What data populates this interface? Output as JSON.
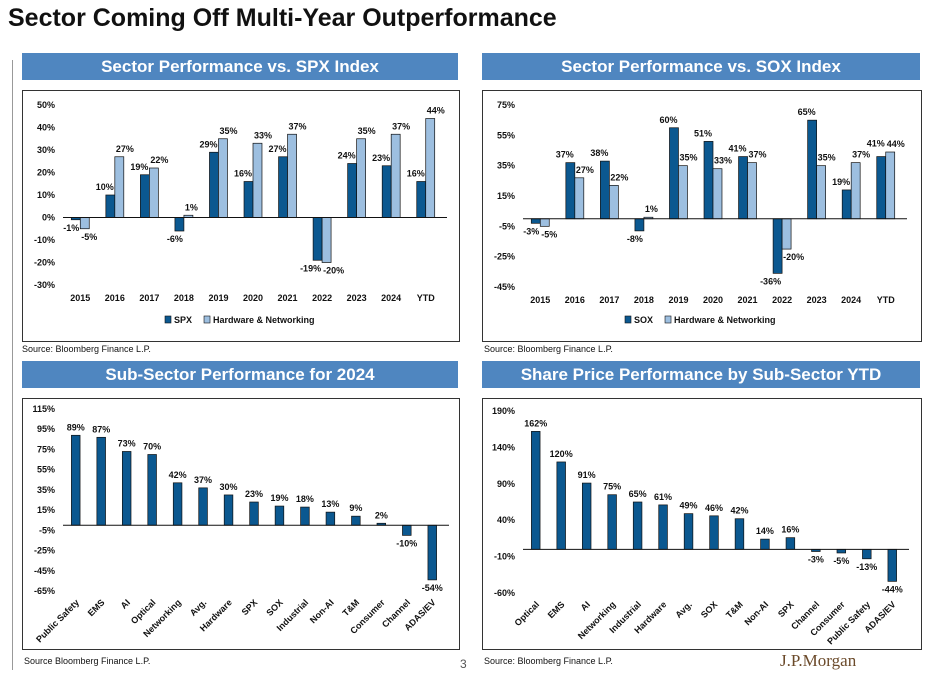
{
  "title": "Sector Coming Off Multi-Year Outperformance",
  "page_number": "3",
  "logo": "J.P.Morgan",
  "colors": {
    "header": "#4f86c0",
    "dark_bar": "#0b5890",
    "light_bar": "#9dbfe0"
  },
  "panels": [
    {
      "header": "Sector Performance vs. SPX Index",
      "source": "Source: Bloomberg Finance L.P."
    },
    {
      "header": "Sector Performance vs. SOX Index",
      "source": "Source: Bloomberg Finance L.P."
    },
    {
      "header": "Sub-Sector Performance for 2024",
      "source": "Source Bloomberg Finance L.P."
    },
    {
      "header": "Share Price Performance by Sub-Sector YTD",
      "source": "Source: Bloomberg Finance L.P."
    }
  ],
  "chart_data": [
    {
      "type": "bar",
      "categories": [
        "2015",
        "2016",
        "2017",
        "2018",
        "2019",
        "2020",
        "2021",
        "2022",
        "2023",
        "2024",
        "YTD"
      ],
      "series": [
        {
          "name": "SPX",
          "values": [
            -1,
            10,
            19,
            -6,
            29,
            16,
            27,
            -19,
            24,
            23,
            16
          ]
        },
        {
          "name": "Hardware & Networking",
          "values": [
            -5,
            27,
            22,
            1,
            35,
            33,
            37,
            -20,
            35,
            37,
            44
          ]
        }
      ],
      "ylim": [
        -30,
        50
      ],
      "yticks": [
        -30,
        -20,
        -10,
        0,
        10,
        20,
        30,
        40,
        50
      ],
      "tick_labels": [
        "-30%",
        "-20%",
        "-10%",
        "0%",
        "10%",
        "20%",
        "30%",
        "40%",
        "50%"
      ],
      "unit": "%",
      "legend": "bottom",
      "grid": false
    },
    {
      "type": "bar",
      "categories": [
        "2015",
        "2016",
        "2017",
        "2018",
        "2019",
        "2020",
        "2021",
        "2022",
        "2023",
        "2024",
        "YTD"
      ],
      "series": [
        {
          "name": "SOX",
          "values": [
            -3,
            37,
            38,
            -8,
            60,
            51,
            41,
            -36,
            65,
            19,
            41
          ]
        },
        {
          "name": "Hardware & Networking",
          "values": [
            -5,
            27,
            22,
            1,
            35,
            33,
            37,
            -20,
            35,
            37,
            44
          ]
        }
      ],
      "ylim": [
        -45,
        75
      ],
      "yticks": [
        -45,
        -25,
        -5,
        15,
        35,
        55,
        75
      ],
      "tick_labels": [
        "-45%",
        "-25%",
        "-5%",
        "15%",
        "35%",
        "55%",
        "75%"
      ],
      "unit": "%",
      "legend": "bottom",
      "grid": false
    },
    {
      "type": "bar",
      "categories": [
        "Public Safety",
        "EMS",
        "AI",
        "Optical",
        "Networking",
        "Avg.",
        "Hardware",
        "SPX",
        "SOX",
        "Industrial",
        "Non-AI",
        "T&M",
        "Consumer",
        "Channel",
        "ADAS/EV"
      ],
      "series": [
        {
          "values": [
            89,
            87,
            73,
            70,
            42,
            37,
            30,
            23,
            19,
            18,
            13,
            9,
            2,
            -10,
            -54
          ]
        }
      ],
      "ylim": [
        -65,
        115
      ],
      "yticks": [
        -65,
        -45,
        -25,
        -5,
        15,
        35,
        55,
        75,
        95,
        115
      ],
      "tick_labels": [
        "-65%",
        "-45%",
        "-25%",
        "-5%",
        "15%",
        "35%",
        "55%",
        "75%",
        "95%",
        "115%"
      ],
      "unit": "%",
      "grid": false
    },
    {
      "type": "bar",
      "categories": [
        "Optical",
        "EMS",
        "AI",
        "Networking",
        "Industrial",
        "Hardware",
        "Avg.",
        "SOX",
        "T&M",
        "Non-AI",
        "SPX",
        "Channel",
        "Consumer",
        "Public Safety",
        "ADAS/EV"
      ],
      "series": [
        {
          "values": [
            162,
            120,
            91,
            75,
            65,
            61,
            49,
            46,
            42,
            14,
            16,
            -3,
            -5,
            -13,
            -44
          ]
        }
      ],
      "ylim": [
        -60,
        190
      ],
      "yticks": [
        -60,
        -10,
        40,
        90,
        140,
        190
      ],
      "tick_labels": [
        "-60%",
        "-10%",
        "40%",
        "90%",
        "140%",
        "190%"
      ],
      "unit": "%",
      "grid": false
    }
  ]
}
